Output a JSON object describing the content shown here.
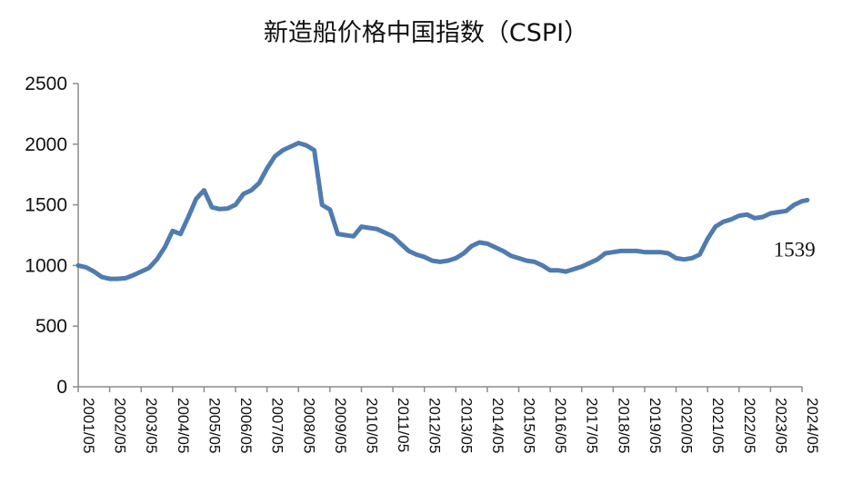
{
  "chart_data": {
    "type": "line",
    "title": "新造船价格中国指数（CSPI）",
    "xlabel": "",
    "ylabel": "",
    "ylim": [
      0,
      2500
    ],
    "yticks": [
      0,
      500,
      1000,
      1500,
      2000,
      2500
    ],
    "grid": false,
    "legend": "none",
    "line_color": "#4f7bb0",
    "x_tick_labels": [
      "2001/05",
      "2002/05",
      "2003/05",
      "2004/05",
      "2005/05",
      "2006/05",
      "2007/05",
      "2008/05",
      "2009/05",
      "2010/05",
      "2011/05",
      "2012/05",
      "2013/05",
      "2014/05",
      "2015/05",
      "2016/05",
      "2017/05",
      "2018/05",
      "2019/05",
      "2020/05",
      "2021/05",
      "2022/05",
      "2023/05",
      "2024/05"
    ],
    "series": [
      {
        "x": [
          "2001/05",
          "2001/08",
          "2001/11",
          "2002/02",
          "2002/05",
          "2002/08",
          "2002/11",
          "2003/02",
          "2003/05",
          "2003/08",
          "2003/11",
          "2004/02",
          "2004/05",
          "2004/08",
          "2004/11",
          "2005/02",
          "2005/05",
          "2005/08",
          "2005/11",
          "2006/02",
          "2006/05",
          "2006/08",
          "2006/11",
          "2007/02",
          "2007/05",
          "2007/08",
          "2007/11",
          "2008/02",
          "2008/05",
          "2008/08",
          "2008/11",
          "2009/02",
          "2009/05",
          "2009/08",
          "2009/11",
          "2010/02",
          "2010/05",
          "2010/08",
          "2010/11",
          "2011/02",
          "2011/05",
          "2011/08",
          "2011/11",
          "2012/02",
          "2012/05",
          "2012/08",
          "2012/11",
          "2013/02",
          "2013/05",
          "2013/08",
          "2013/11",
          "2014/02",
          "2014/05",
          "2014/08",
          "2014/11",
          "2015/02",
          "2015/05",
          "2015/08",
          "2015/11",
          "2016/02",
          "2016/05",
          "2016/08",
          "2016/11",
          "2017/02",
          "2017/05",
          "2017/08",
          "2017/11",
          "2018/02",
          "2018/05",
          "2018/08",
          "2018/11",
          "2019/02",
          "2019/05",
          "2019/08",
          "2019/11",
          "2020/02",
          "2020/05",
          "2020/08",
          "2020/11",
          "2021/02",
          "2021/05",
          "2021/08",
          "2021/11",
          "2022/02",
          "2022/05",
          "2022/08",
          "2022/11",
          "2023/02",
          "2023/05",
          "2023/08",
          "2023/11",
          "2024/02",
          "2024/05",
          "2024/07"
        ],
        "values": [
          1000,
          985,
          950,
          905,
          890,
          890,
          895,
          920,
          950,
          980,
          1050,
          1150,
          1285,
          1260,
          1400,
          1550,
          1620,
          1480,
          1465,
          1470,
          1500,
          1590,
          1620,
          1680,
          1800,
          1900,
          1950,
          1980,
          2010,
          1990,
          1950,
          1500,
          1460,
          1260,
          1250,
          1240,
          1320,
          1310,
          1300,
          1270,
          1240,
          1180,
          1120,
          1090,
          1070,
          1040,
          1030,
          1040,
          1060,
          1100,
          1160,
          1190,
          1180,
          1150,
          1120,
          1080,
          1060,
          1040,
          1030,
          1000,
          960,
          960,
          950,
          970,
          990,
          1020,
          1050,
          1100,
          1110,
          1120,
          1120,
          1120,
          1110,
          1110,
          1110,
          1100,
          1060,
          1050,
          1060,
          1090,
          1220,
          1320,
          1360,
          1380,
          1410,
          1420,
          1390,
          1400,
          1430,
          1440,
          1450,
          1500,
          1530,
          1539
        ]
      }
    ],
    "annotations": [
      {
        "text": "1539",
        "x": "2024/07",
        "y": 1539
      }
    ]
  }
}
